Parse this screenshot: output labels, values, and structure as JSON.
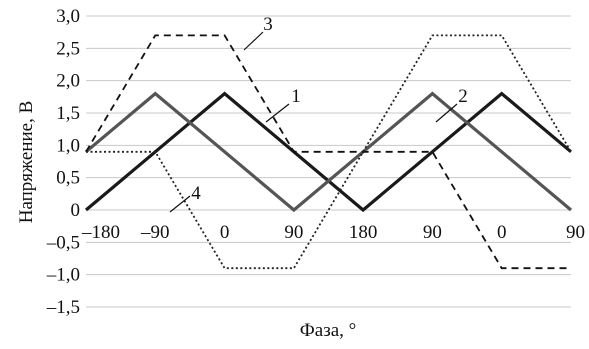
{
  "chart_data": {
    "type": "line",
    "xlabel": "Фаза, °",
    "ylabel": "Напряжение, В",
    "ylim": [
      -1.5,
      3.0
    ],
    "grid": "horizontal",
    "y_ticks": [
      "3,0",
      "2,5",
      "2,0",
      "1,5",
      "1,0",
      "0,5",
      "0",
      "–0,5",
      "–1,0",
      "–1,5"
    ],
    "y_tick_values": [
      3.0,
      2.5,
      2.0,
      1.5,
      1.0,
      0.5,
      0,
      -0.5,
      -1.0,
      -1.5
    ],
    "x_ticks": [
      "–180",
      "–90",
      "0",
      "90",
      "180",
      "90",
      "0",
      "90"
    ],
    "x_tick_positions": [
      0,
      1,
      2,
      3,
      4,
      5,
      6,
      7
    ],
    "series": [
      {
        "name": "1",
        "style": "solid-thick",
        "color": "#1a1a1a",
        "x": [
          0,
          2,
          4,
          6,
          7
        ],
        "y": [
          0,
          1.8,
          0,
          1.8,
          0.9
        ]
      },
      {
        "name": "2",
        "style": "solid-medium",
        "color": "#555555",
        "x": [
          0,
          1,
          3,
          5,
          7
        ],
        "y": [
          0.9,
          1.8,
          0,
          1.8,
          0
        ]
      },
      {
        "name": "3",
        "style": "dashed",
        "color": "#111111",
        "x": [
          0,
          1,
          2,
          3,
          4,
          5,
          6,
          7
        ],
        "y": [
          0.9,
          2.7,
          2.7,
          0.9,
          0.9,
          0.9,
          -0.9,
          -0.9
        ]
      },
      {
        "name": "4",
        "style": "dotted",
        "color": "#222222",
        "x": [
          0,
          1,
          2,
          3,
          4,
          5,
          6,
          7
        ],
        "y": [
          0.9,
          0.9,
          -0.9,
          -0.9,
          0.9,
          2.7,
          2.7,
          0.9
        ]
      }
    ]
  }
}
